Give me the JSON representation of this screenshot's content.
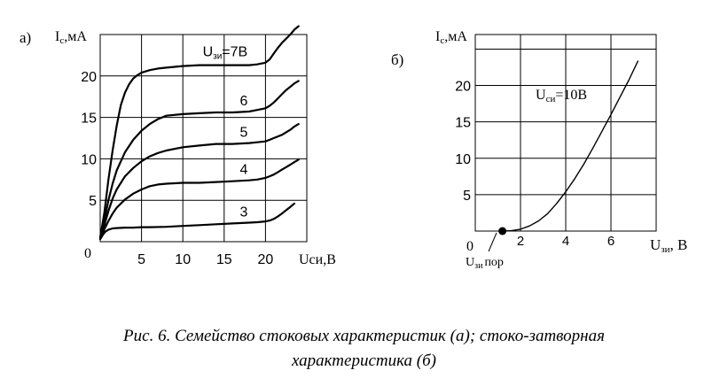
{
  "chart_data": [
    {
      "type": "line",
      "panel_label": "а)",
      "ylabel": {
        "main": "I",
        "sub": "с",
        "rest": ",мА"
      },
      "xlabel": "Uси,В",
      "xlim": [
        0,
        25
      ],
      "ylim": [
        0,
        25
      ],
      "x_ticks": [
        "5",
        "10",
        "15",
        "20"
      ],
      "y_ticks": [
        "5",
        "10",
        "15",
        "20"
      ],
      "origin_label": "0",
      "grid": true,
      "series": [
        {
          "name": "7В",
          "label_prefix": "U",
          "label_sub": "зи",
          "label_value": "=7В",
          "x": [
            0,
            0.5,
            1,
            1.5,
            2,
            2.5,
            3,
            3.5,
            4,
            4.5,
            5,
            6,
            7,
            8,
            10,
            12,
            14,
            16,
            18,
            19,
            20,
            20.5,
            21,
            21.5,
            22,
            22.5,
            23,
            23.5,
            24
          ],
          "y": [
            0.5,
            3.5,
            7.5,
            11,
            14,
            16.5,
            18,
            19,
            19.7,
            20.1,
            20.4,
            20.7,
            20.9,
            21,
            21.2,
            21.3,
            21.3,
            21.3,
            21.3,
            21.4,
            21.6,
            22,
            22.7,
            23.4,
            24,
            24.5,
            25,
            25.6,
            26
          ]
        },
        {
          "name": "6",
          "label_value": "6",
          "x": [
            0,
            0.5,
            1,
            1.5,
            2,
            3,
            4,
            5,
            6,
            7,
            8,
            10,
            12,
            14,
            16,
            18,
            19,
            20,
            20.5,
            21,
            21.5,
            22,
            22.5,
            23,
            23.5,
            24
          ],
          "y": [
            0.5,
            2.5,
            5,
            7,
            8.6,
            10.8,
            12.3,
            13.4,
            14.2,
            14.8,
            15.2,
            15.4,
            15.5,
            15.6,
            15.6,
            15.7,
            15.9,
            16.1,
            16.4,
            16.8,
            17.3,
            17.8,
            18.3,
            18.7,
            19.1,
            19.4
          ]
        },
        {
          "name": "5",
          "label_value": "5",
          "x": [
            0,
            0.5,
            1,
            1.5,
            2,
            3,
            4,
            5,
            6,
            7,
            8,
            10,
            12,
            14,
            16,
            18,
            19,
            20,
            20.5,
            21,
            21.5,
            22,
            22.5,
            23,
            23.5,
            24
          ],
          "y": [
            0.5,
            2,
            3.7,
            5.2,
            6.3,
            7.9,
            8.9,
            9.7,
            10.3,
            10.7,
            11,
            11.4,
            11.6,
            11.8,
            11.8,
            11.9,
            12,
            12.1,
            12.3,
            12.5,
            12.7,
            12.9,
            13.2,
            13.5,
            13.9,
            14.2
          ]
        },
        {
          "name": "4",
          "label_value": "4",
          "x": [
            0,
            0.5,
            1,
            1.5,
            2,
            3,
            4,
            5,
            6,
            7,
            8,
            10,
            12,
            14,
            16,
            18,
            19,
            20,
            20.5,
            21,
            21.5,
            22,
            22.5,
            23,
            23.5,
            24
          ],
          "y": [
            0.4,
            1.5,
            2.5,
            3.4,
            4.1,
            5.1,
            5.8,
            6.3,
            6.7,
            6.9,
            7,
            7.1,
            7.1,
            7.2,
            7.3,
            7.4,
            7.5,
            7.7,
            7.9,
            8.1,
            8.4,
            8.7,
            9,
            9.3,
            9.6,
            9.9
          ]
        },
        {
          "name": "3",
          "label_value": "3",
          "x": [
            0,
            0.3,
            0.6,
            1,
            1.5,
            2,
            3,
            4,
            5,
            6,
            8,
            10,
            12,
            14,
            16,
            18,
            19,
            20,
            20.5,
            21,
            21.5,
            22,
            22.5,
            23,
            23.5
          ],
          "y": [
            0.3,
            0.8,
            1.2,
            1.45,
            1.6,
            1.65,
            1.7,
            1.7,
            1.75,
            1.75,
            1.8,
            1.9,
            2,
            2.1,
            2.2,
            2.3,
            2.35,
            2.45,
            2.55,
            2.75,
            3.05,
            3.4,
            3.8,
            4.2,
            4.6
          ]
        }
      ],
      "series_color": "#000000"
    },
    {
      "type": "line",
      "panel_label": "б)",
      "ylabel": {
        "main": "I",
        "sub": "с",
        "rest": ",мА"
      },
      "xlabel": {
        "main": "U",
        "sub": "зи",
        "rest": ", В"
      },
      "xlim": [
        0,
        8
      ],
      "ylim": [
        0,
        27
      ],
      "x_ticks": [
        "2",
        "4",
        "6"
      ],
      "y_ticks": [
        "5",
        "10",
        "15",
        "20"
      ],
      "origin_label": "0",
      "grid": true,
      "annotation": {
        "main": "U",
        "sub": "си",
        "rest": "=10В"
      },
      "threshold_label": {
        "main": "U",
        "sub": "зи",
        "rest": "пор"
      },
      "threshold_point": {
        "x": 1.2,
        "y": 0
      },
      "series": [
        {
          "name": "",
          "x": [
            1.2,
            1.6,
            2,
            2.4,
            2.8,
            3.2,
            3.6,
            4,
            4.4,
            4.8,
            5.2,
            5.6,
            6,
            6.4,
            6.8,
            7.2
          ],
          "y": [
            0,
            0.05,
            0.25,
            0.7,
            1.4,
            2.4,
            3.8,
            5.4,
            7.2,
            9.2,
            11.4,
            13.7,
            16,
            18.4,
            20.8,
            23.4
          ]
        }
      ],
      "series_color": "#000000"
    }
  ],
  "caption": {
    "line1": "Рис. 6. Семейство  стоковых характеристик (а); стоко-затворная",
    "line2": "характеристика (б)"
  }
}
